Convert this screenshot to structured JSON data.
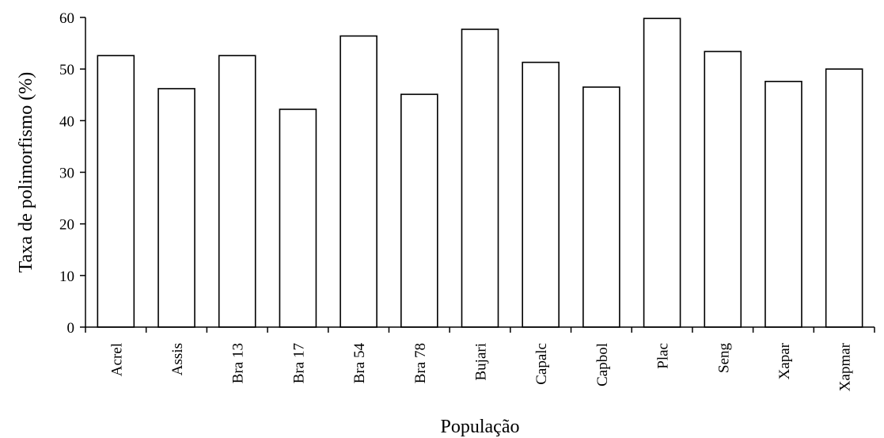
{
  "chart_data": {
    "type": "bar",
    "title": "",
    "xlabel": "População",
    "ylabel": "Taxa de polimorfismo (%)",
    "ylim": [
      0,
      60
    ],
    "yticks": [
      0,
      10,
      20,
      30,
      40,
      50,
      60
    ],
    "categories": [
      "Acrel",
      "Assis",
      "Bra 13",
      "Bra 17",
      "Bra 54",
      "Bra 78",
      "Bujari",
      "Capalc",
      "Capbol",
      "Plac",
      "Seng",
      "Xapar",
      "Xapmar"
    ],
    "values": [
      52.6,
      46.2,
      52.6,
      42.2,
      56.4,
      45.1,
      57.7,
      51.3,
      46.5,
      59.8,
      53.4,
      47.6,
      50.0
    ],
    "grid": false,
    "legend": "none",
    "colors": {
      "bar_fill": "#ffffff",
      "bar_stroke": "#000000",
      "axis": "#000000"
    }
  }
}
